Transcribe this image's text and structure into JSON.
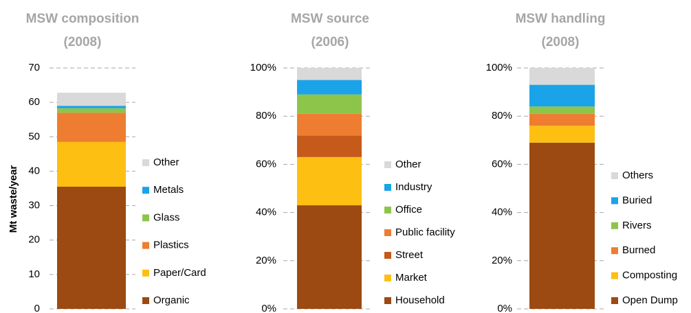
{
  "chart_data": [
    {
      "type": "bar",
      "stacked": true,
      "title": "MSW composition",
      "subtitle": "(2008)",
      "ylabel": "Mt waste/year",
      "ylim": [
        0,
        70
      ],
      "yticks": [
        0,
        10,
        20,
        30,
        40,
        50,
        60,
        70
      ],
      "grid": true,
      "legend": "right",
      "series": [
        {
          "name": "Organic",
          "color": "#9c4a12",
          "values": [
            35.5
          ]
        },
        {
          "name": "Paper/Card",
          "color": "#fdbf12",
          "values": [
            13
          ]
        },
        {
          "name": "Plastics",
          "color": "#ee7d31",
          "values": [
            8.5
          ]
        },
        {
          "name": "Glass",
          "color": "#8dc54b",
          "values": [
            1.3
          ]
        },
        {
          "name": "Metals",
          "color": "#1aa3e8",
          "values": [
            0.7
          ]
        },
        {
          "name": "Other",
          "color": "#d9d9d9",
          "values": [
            3.8
          ]
        }
      ]
    },
    {
      "type": "bar",
      "stacked": true,
      "title": "MSW source",
      "subtitle": "(2006)",
      "ylim": [
        0,
        100
      ],
      "yticks": [
        {
          "value": 0,
          "label": "0%"
        },
        {
          "value": 20,
          "label": "20%"
        },
        {
          "value": 40,
          "label": "40%"
        },
        {
          "value": 60,
          "label": "60%"
        },
        {
          "value": 80,
          "label": "80%"
        },
        {
          "value": 100,
          "label": "100%"
        }
      ],
      "grid": true,
      "legend": "right",
      "series": [
        {
          "name": "Household",
          "color": "#9c4a12",
          "values": [
            43
          ]
        },
        {
          "name": "Market",
          "color": "#fdbf12",
          "values": [
            20
          ]
        },
        {
          "name": "Street",
          "color": "#c55a1b",
          "values": [
            9
          ]
        },
        {
          "name": "Public facility",
          "color": "#ee7d31",
          "values": [
            9
          ]
        },
        {
          "name": "Office",
          "color": "#8dc54b",
          "values": [
            8
          ]
        },
        {
          "name": "Industry",
          "color": "#1aa3e8",
          "values": [
            6
          ]
        },
        {
          "name": "Other",
          "color": "#d9d9d9",
          "values": [
            5
          ]
        }
      ]
    },
    {
      "type": "bar",
      "stacked": true,
      "title": "MSW handling",
      "subtitle": "(2008)",
      "ylim": [
        0,
        100
      ],
      "yticks": [
        {
          "value": 0,
          "label": "0%"
        },
        {
          "value": 20,
          "label": "20%"
        },
        {
          "value": 40,
          "label": "40%"
        },
        {
          "value": 60,
          "label": "60%"
        },
        {
          "value": 80,
          "label": "80%"
        },
        {
          "value": 100,
          "label": "100%"
        }
      ],
      "grid": true,
      "legend": "right",
      "series": [
        {
          "name": "Open Dump",
          "color": "#9c4a12",
          "values": [
            69
          ]
        },
        {
          "name": "Composting",
          "color": "#fdbf12",
          "values": [
            7
          ]
        },
        {
          "name": "Burned",
          "color": "#ee7d31",
          "values": [
            5
          ]
        },
        {
          "name": "Rivers",
          "color": "#8dc54b",
          "values": [
            3
          ]
        },
        {
          "name": "Buried",
          "color": "#1aa3e8",
          "values": [
            9
          ]
        },
        {
          "name": "Others",
          "color": "#d9d9d9",
          "values": [
            7
          ]
        }
      ]
    }
  ]
}
